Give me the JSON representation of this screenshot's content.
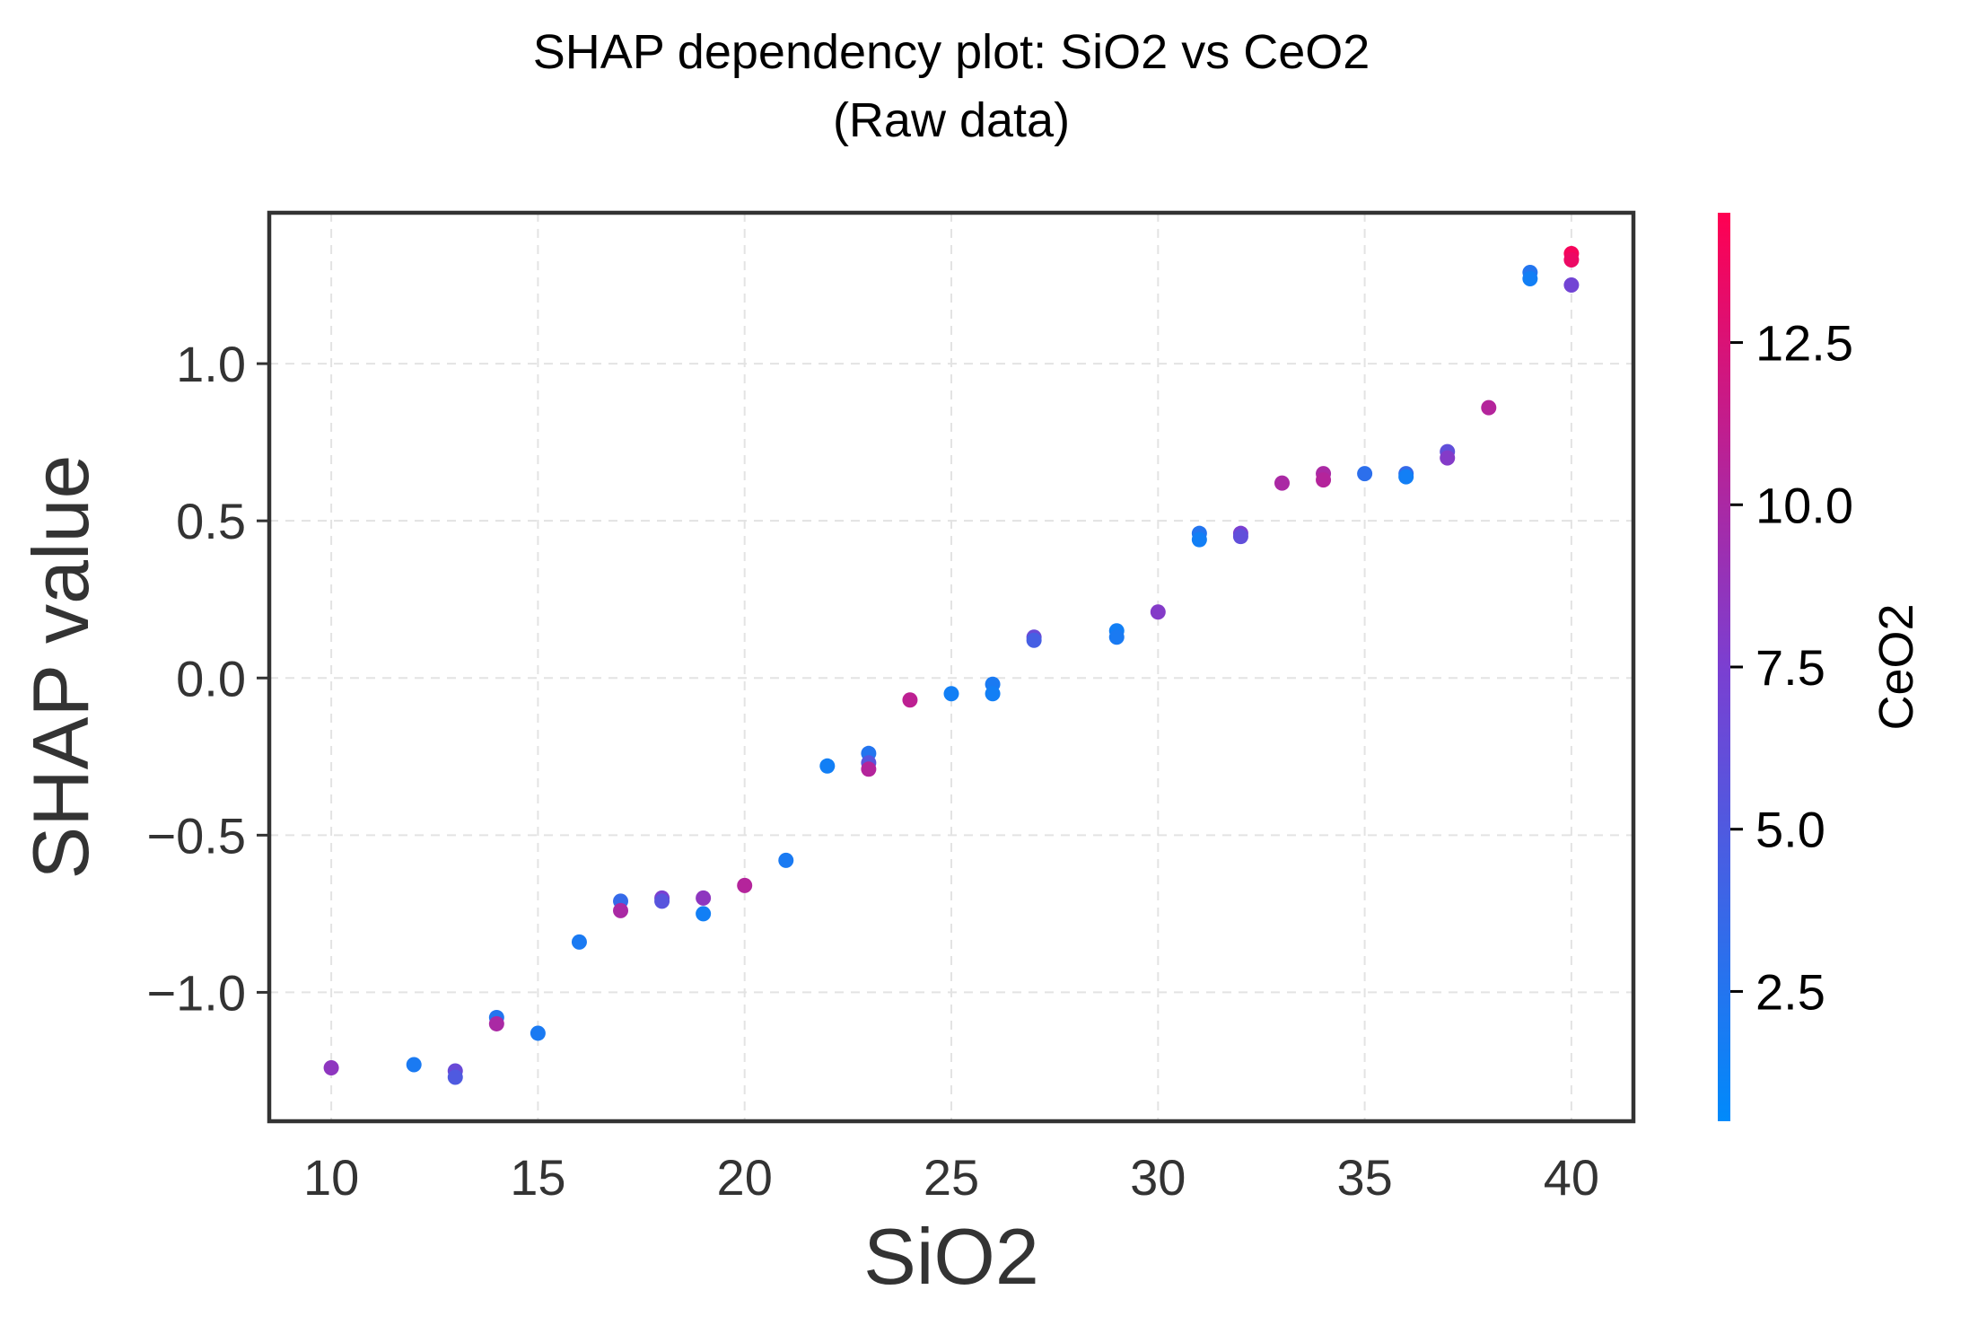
{
  "chart_data": {
    "type": "scatter",
    "title": "SHAP dependency plot: SiO2 vs CeO2",
    "subtitle": "(Raw data)",
    "xlabel": "SiO2",
    "ylabel": "SHAP value",
    "xlim": [
      8.5,
      41.5
    ],
    "ylim": [
      -1.41,
      1.48
    ],
    "x_ticks": [
      10,
      15,
      20,
      25,
      30,
      35,
      40
    ],
    "x_tick_labels": [
      "10",
      "15",
      "20",
      "25",
      "30",
      "35",
      "40"
    ],
    "y_ticks": [
      -1.0,
      -0.5,
      0.0,
      0.5,
      1.0
    ],
    "y_tick_labels": [
      "−1.0",
      "−0.5",
      "0.0",
      "0.5",
      "1.0"
    ],
    "grid": true,
    "colorbar": {
      "label": "CeO2",
      "range": [
        0.5,
        14.5
      ],
      "ticks": [
        2.5,
        5.0,
        7.5,
        10.0,
        12.5
      ],
      "tick_labels": [
        "2.5",
        "5.0",
        "7.5",
        "10.0",
        "12.5"
      ],
      "colormap": [
        "#008afb",
        "#7b3fd1",
        "#ff0052"
      ]
    },
    "points": [
      {
        "x": 10,
        "y": -1.24,
        "c": 8.5
      },
      {
        "x": 12,
        "y": -1.23,
        "c": 2.0
      },
      {
        "x": 13,
        "y": -1.25,
        "c": 6.5
      },
      {
        "x": 13,
        "y": -1.27,
        "c": 5.0
      },
      {
        "x": 14,
        "y": -1.08,
        "c": 2.5
      },
      {
        "x": 14,
        "y": -1.1,
        "c": 10.0
      },
      {
        "x": 15,
        "y": -1.13,
        "c": 2.0
      },
      {
        "x": 16,
        "y": -0.84,
        "c": 2.0
      },
      {
        "x": 17,
        "y": -0.71,
        "c": 3.5
      },
      {
        "x": 17,
        "y": -0.74,
        "c": 10.0
      },
      {
        "x": 18,
        "y": -0.7,
        "c": 7.5
      },
      {
        "x": 18,
        "y": -0.71,
        "c": 5.5
      },
      {
        "x": 19,
        "y": -0.7,
        "c": 8.5
      },
      {
        "x": 19,
        "y": -0.75,
        "c": 1.5
      },
      {
        "x": 20,
        "y": -0.66,
        "c": 10.5
      },
      {
        "x": 21,
        "y": -0.58,
        "c": 2.0
      },
      {
        "x": 22,
        "y": -0.28,
        "c": 1.5
      },
      {
        "x": 23,
        "y": -0.24,
        "c": 2.5
      },
      {
        "x": 23,
        "y": -0.27,
        "c": 5.5
      },
      {
        "x": 23,
        "y": -0.29,
        "c": 10.5
      },
      {
        "x": 24,
        "y": -0.07,
        "c": 11.0
      },
      {
        "x": 25,
        "y": -0.05,
        "c": 1.5
      },
      {
        "x": 26,
        "y": -0.02,
        "c": 2.0
      },
      {
        "x": 26,
        "y": -0.05,
        "c": 1.5
      },
      {
        "x": 27,
        "y": 0.13,
        "c": 6.5
      },
      {
        "x": 27,
        "y": 0.12,
        "c": 4.5
      },
      {
        "x": 29,
        "y": 0.15,
        "c": 1.5
      },
      {
        "x": 29,
        "y": 0.13,
        "c": 2.0
      },
      {
        "x": 30,
        "y": 0.21,
        "c": 8.0
      },
      {
        "x": 31,
        "y": 0.46,
        "c": 2.5
      },
      {
        "x": 31,
        "y": 0.44,
        "c": 1.5
      },
      {
        "x": 32,
        "y": 0.46,
        "c": 7.5
      },
      {
        "x": 32,
        "y": 0.45,
        "c": 6.0
      },
      {
        "x": 33,
        "y": 0.62,
        "c": 10.0
      },
      {
        "x": 34,
        "y": 0.65,
        "c": 10.0
      },
      {
        "x": 34,
        "y": 0.63,
        "c": 10.5
      },
      {
        "x": 35,
        "y": 0.65,
        "c": 3.0
      },
      {
        "x": 36,
        "y": 0.65,
        "c": 3.5
      },
      {
        "x": 36,
        "y": 0.64,
        "c": 1.5
      },
      {
        "x": 37,
        "y": 0.72,
        "c": 6.0
      },
      {
        "x": 37,
        "y": 0.7,
        "c": 8.0
      },
      {
        "x": 38,
        "y": 0.86,
        "c": 10.5
      },
      {
        "x": 39,
        "y": 1.29,
        "c": 2.5
      },
      {
        "x": 39,
        "y": 1.27,
        "c": 1.5
      },
      {
        "x": 40,
        "y": 1.35,
        "c": 14.0
      },
      {
        "x": 40,
        "y": 1.33,
        "c": 13.5
      },
      {
        "x": 40,
        "y": 1.25,
        "c": 7.0
      }
    ]
  }
}
